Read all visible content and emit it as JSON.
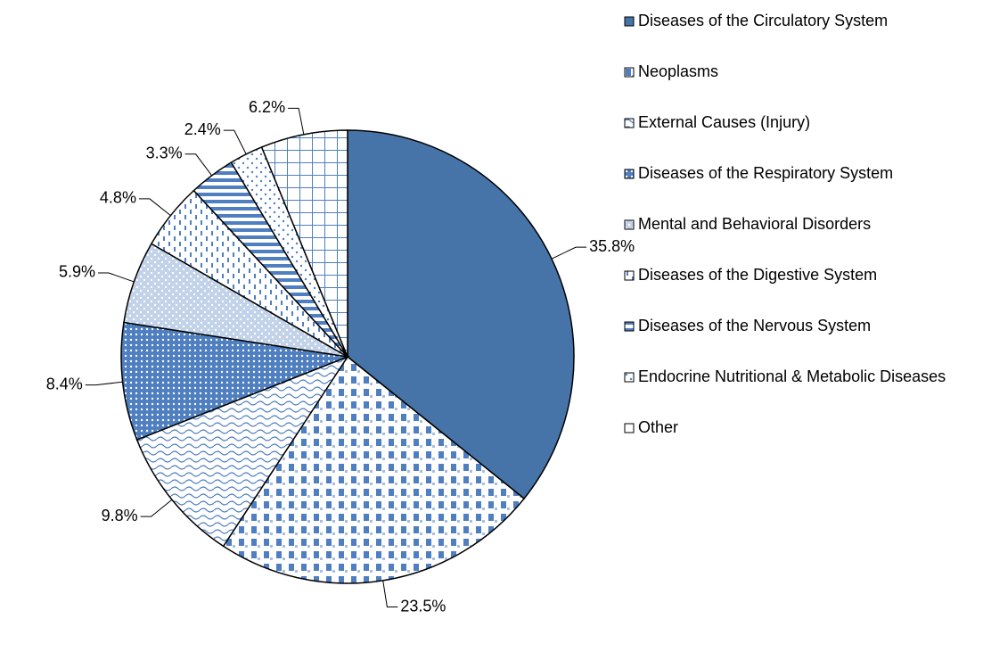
{
  "chart_data": {
    "type": "pie",
    "categories": [
      "Diseases of the Circulatory System",
      "Neoplasms",
      "External Causes (Injury)",
      "Diseases of the Respiratory System",
      "Mental and Behavioral Disorders",
      "Diseases of the Digestive System",
      "Diseases of the Nervous System",
      "Endocrine Nutritional & Metabolic Diseases",
      "Other"
    ],
    "values": [
      35.8,
      23.5,
      9.8,
      8.4,
      5.9,
      4.8,
      3.3,
      2.4,
      6.2
    ],
    "value_labels": [
      "35.8%",
      "23.5%",
      "9.8%",
      "8.4%",
      "5.9%",
      "4.8%",
      "3.3%",
      "2.4%",
      "6.2%"
    ],
    "colors": [
      "#4673a8",
      "#4f7fc0",
      "#4f7fc0",
      "#4f7fc0",
      "#4f7fc0",
      "#4f7fc0",
      "#4f7fc0",
      "#4f7fc0",
      "#4f7fc0"
    ],
    "legend": "right"
  }
}
